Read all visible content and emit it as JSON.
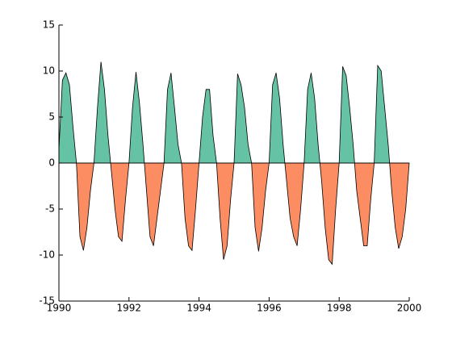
{
  "chart_data": {
    "type": "area",
    "x": [
      1990,
      1990.1,
      1990.2,
      1990.3,
      1990.4,
      1990.5,
      1990.6,
      1990.7,
      1990.8,
      1990.9,
      1991,
      1991.1,
      1991.2,
      1991.3,
      1991.4,
      1991.5,
      1991.6,
      1991.7,
      1991.8,
      1991.9,
      1992,
      1992.1,
      1992.2,
      1992.3,
      1992.4,
      1992.5,
      1992.6,
      1992.7,
      1992.8,
      1992.9,
      1993,
      1993.1,
      1993.2,
      1993.3,
      1993.4,
      1993.5,
      1993.6,
      1993.7,
      1993.8,
      1993.9,
      1994,
      1994.1,
      1994.2,
      1994.3,
      1994.4,
      1994.5,
      1994.6,
      1994.7,
      1994.8,
      1994.9,
      1995,
      1995.1,
      1995.2,
      1995.3,
      1995.4,
      1995.5,
      1995.6,
      1995.7,
      1995.8,
      1995.9,
      1996,
      1996.1,
      1996.2,
      1996.3,
      1996.4,
      1996.5,
      1996.6,
      1996.7,
      1996.8,
      1996.9,
      1997,
      1997.1,
      1997.2,
      1997.3,
      1997.4,
      1997.5,
      1997.6,
      1997.7,
      1997.8,
      1997.9,
      1998,
      1998.1,
      1998.2,
      1998.3,
      1998.4,
      1998.5,
      1998.6,
      1998.7,
      1998.8,
      1998.9,
      1999,
      1999.1,
      1999.2,
      1999.3,
      1999.4,
      1999.5,
      1999.6,
      1999.7,
      1999.8,
      1999.9,
      2000
    ],
    "values": [
      1.5,
      9,
      9.8,
      8.5,
      4,
      0,
      -8,
      -9.5,
      -7,
      -3,
      0,
      6,
      11,
      8,
      3,
      -1,
      -5,
      -8,
      -8.5,
      -4,
      0,
      6,
      9.9,
      6.5,
      2,
      -3,
      -8,
      -9,
      -6,
      -3,
      0,
      8,
      9.8,
      6,
      2,
      0,
      -6,
      -9,
      -9.5,
      -5,
      0,
      5,
      8,
      8,
      3,
      0,
      -6,
      -10.5,
      -9,
      -4,
      0,
      9.7,
      8.5,
      6,
      2,
      0,
      -7,
      -9.6,
      -7,
      -3,
      0,
      8.5,
      9.8,
      7,
      2,
      -2,
      -6,
      -8,
      -9,
      -5,
      0,
      8,
      9.8,
      7,
      2,
      -2,
      -7,
      -10.5,
      -11,
      -5,
      0,
      10.5,
      9.5,
      6,
      2,
      -3,
      -6,
      -9,
      -9,
      -4,
      0,
      10.6,
      10,
      6,
      2,
      -3,
      -7,
      -9.3,
      -8,
      -5,
      0
    ],
    "positive_color": "#66c2a5",
    "negative_color": "#fc8d62",
    "xlim": [
      1990,
      2000
    ],
    "xticks": [
      1990,
      1992,
      1994,
      1996,
      1998,
      2000
    ],
    "ylim": [
      -15,
      15
    ],
    "yticks": [
      -15,
      -10,
      -5,
      0,
      5,
      10,
      15
    ]
  }
}
